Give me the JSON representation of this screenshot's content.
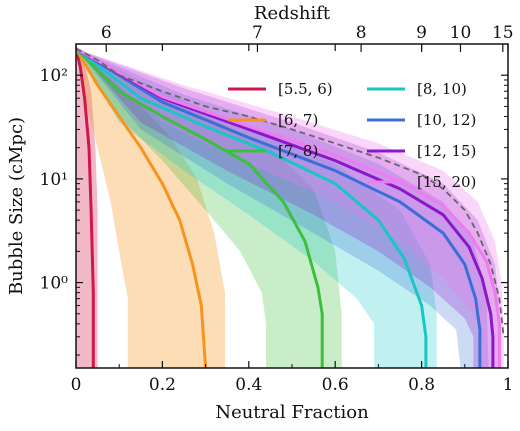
{
  "chart_data": {
    "type": "line",
    "xlabel": "Neutral Fraction",
    "ylabel": "Bubble Size (cMpc)",
    "top_axis_label": "Redshift",
    "xlim": [
      0,
      1
    ],
    "ylim": [
      0.15,
      200
    ],
    "yscale": "log",
    "x_ticks": [
      0,
      0.2,
      0.4,
      0.6,
      0.8,
      1
    ],
    "x_tick_labels": [
      "0",
      "0.2",
      "0.4",
      "0.6",
      "0.8",
      "1"
    ],
    "y_ticks": [
      1,
      10,
      100
    ],
    "y_tick_labels": [
      "10⁰",
      "10¹",
      "10²"
    ],
    "top_ticks": [
      {
        "label": "6",
        "x": 0.07
      },
      {
        "label": "7",
        "x": 0.42
      },
      {
        "label": "8",
        "x": 0.66
      },
      {
        "label": "9",
        "x": 0.8
      },
      {
        "label": "10",
        "x": 0.89
      },
      {
        "label": "15",
        "x": 0.988
      }
    ],
    "legend_position": "top-right",
    "grid": false,
    "reference_line": {
      "style": "dashed",
      "color": "#666666",
      "points": [
        [
          0,
          180
        ],
        [
          0.05,
          140
        ],
        [
          0.1,
          100
        ],
        [
          0.2,
          70
        ],
        [
          0.3,
          50
        ],
        [
          0.4,
          40
        ],
        [
          0.5,
          30
        ],
        [
          0.6,
          22
        ],
        [
          0.7,
          16
        ],
        [
          0.8,
          11
        ],
        [
          0.85,
          8
        ],
        [
          0.9,
          5
        ],
        [
          0.93,
          3
        ],
        [
          0.96,
          1.5
        ],
        [
          0.98,
          0.7
        ],
        [
          0.99,
          0.3
        ]
      ]
    },
    "series": [
      {
        "name": "[5.5, 6)",
        "color": "#d1174a",
        "band_opacity": 0.3,
        "points": [
          [
            0,
            180
          ],
          [
            0.01,
            120
          ],
          [
            0.02,
            60
          ],
          [
            0.03,
            20
          ],
          [
            0.035,
            5
          ],
          [
            0.04,
            0.8
          ],
          [
            0.04,
            0.15
          ]
        ],
        "band_lower": [
          [
            0,
            180
          ],
          [
            0.0,
            0.15
          ]
        ],
        "band_upper": [
          [
            0,
            180
          ],
          [
            0.02,
            130
          ],
          [
            0.035,
            70
          ],
          [
            0.045,
            20
          ],
          [
            0.05,
            5
          ],
          [
            0.05,
            0.15
          ]
        ]
      },
      {
        "name": "[6, 7)",
        "color": "#f7941d",
        "band_opacity": 0.32,
        "points": [
          [
            0,
            180
          ],
          [
            0.05,
            80
          ],
          [
            0.1,
            40
          ],
          [
            0.15,
            20
          ],
          [
            0.2,
            9
          ],
          [
            0.24,
            4
          ],
          [
            0.27,
            1.5
          ],
          [
            0.29,
            0.6
          ],
          [
            0.3,
            0.15
          ]
        ],
        "band_lower": [
          [
            0,
            180
          ],
          [
            0.02,
            60
          ],
          [
            0.05,
            20
          ],
          [
            0.08,
            6
          ],
          [
            0.1,
            2
          ],
          [
            0.12,
            0.7
          ],
          [
            0.12,
            0.15
          ]
        ],
        "band_upper": [
          [
            0,
            180
          ],
          [
            0.08,
            90
          ],
          [
            0.15,
            50
          ],
          [
            0.22,
            25
          ],
          [
            0.28,
            10
          ],
          [
            0.32,
            3
          ],
          [
            0.345,
            0.8
          ],
          [
            0.345,
            0.15
          ]
        ]
      },
      {
        "name": "[7, 8)",
        "color": "#3cbf3c",
        "band_opacity": 0.28,
        "points": [
          [
            0,
            180
          ],
          [
            0.1,
            70
          ],
          [
            0.2,
            40
          ],
          [
            0.3,
            24
          ],
          [
            0.4,
            14
          ],
          [
            0.48,
            6
          ],
          [
            0.53,
            2.5
          ],
          [
            0.56,
            0.9
          ],
          [
            0.57,
            0.5
          ],
          [
            0.57,
            0.15
          ]
        ],
        "band_lower": [
          [
            0,
            180
          ],
          [
            0.1,
            40
          ],
          [
            0.2,
            15
          ],
          [
            0.3,
            5
          ],
          [
            0.38,
            2
          ],
          [
            0.43,
            0.8
          ],
          [
            0.44,
            0.4
          ],
          [
            0.44,
            0.15
          ]
        ],
        "band_upper": [
          [
            0,
            180
          ],
          [
            0.15,
            80
          ],
          [
            0.3,
            40
          ],
          [
            0.45,
            20
          ],
          [
            0.55,
            8
          ],
          [
            0.6,
            2
          ],
          [
            0.615,
            0.5
          ],
          [
            0.615,
            0.15
          ]
        ]
      },
      {
        "name": "[8, 10)",
        "color": "#19c6c6",
        "band_opacity": 0.27,
        "points": [
          [
            0,
            180
          ],
          [
            0.15,
            60
          ],
          [
            0.3,
            32
          ],
          [
            0.45,
            18
          ],
          [
            0.6,
            9
          ],
          [
            0.7,
            4
          ],
          [
            0.76,
            1.7
          ],
          [
            0.8,
            0.6
          ],
          [
            0.81,
            0.3
          ],
          [
            0.81,
            0.15
          ]
        ],
        "band_lower": [
          [
            0,
            180
          ],
          [
            0.1,
            35
          ],
          [
            0.25,
            12
          ],
          [
            0.4,
            4.5
          ],
          [
            0.55,
            1.6
          ],
          [
            0.65,
            0.7
          ],
          [
            0.69,
            0.4
          ],
          [
            0.69,
            0.15
          ]
        ],
        "band_upper": [
          [
            0,
            180
          ],
          [
            0.2,
            70
          ],
          [
            0.4,
            30
          ],
          [
            0.6,
            14
          ],
          [
            0.75,
            5
          ],
          [
            0.82,
            1.5
          ],
          [
            0.835,
            0.5
          ],
          [
            0.835,
            0.15
          ]
        ]
      },
      {
        "name": "[10, 12)",
        "color": "#3a6fd8",
        "band_opacity": 0.26,
        "points": [
          [
            0,
            180
          ],
          [
            0.2,
            55
          ],
          [
            0.4,
            25
          ],
          [
            0.6,
            12
          ],
          [
            0.75,
            6
          ],
          [
            0.85,
            3
          ],
          [
            0.9,
            1.5
          ],
          [
            0.925,
            0.7
          ],
          [
            0.935,
            0.35
          ],
          [
            0.935,
            0.15
          ]
        ],
        "band_lower": [
          [
            0,
            180
          ],
          [
            0.15,
            30
          ],
          [
            0.35,
            9
          ],
          [
            0.55,
            3
          ],
          [
            0.7,
            1.3
          ],
          [
            0.82,
            0.6
          ],
          [
            0.88,
            0.35
          ],
          [
            0.89,
            0.15
          ]
        ],
        "band_upper": [
          [
            0,
            180
          ],
          [
            0.25,
            65
          ],
          [
            0.5,
            30
          ],
          [
            0.7,
            14
          ],
          [
            0.85,
            6
          ],
          [
            0.92,
            2.5
          ],
          [
            0.95,
            0.8
          ],
          [
            0.955,
            0.15
          ]
        ]
      },
      {
        "name": "[12, 15)",
        "color": "#8a17c9",
        "band_opacity": 0.26,
        "points": [
          [
            0,
            180
          ],
          [
            0.2,
            60
          ],
          [
            0.4,
            30
          ],
          [
            0.6,
            15
          ],
          [
            0.75,
            8
          ],
          [
            0.85,
            4.5
          ],
          [
            0.91,
            2.2
          ],
          [
            0.94,
            1.1
          ],
          [
            0.96,
            0.5
          ],
          [
            0.965,
            0.3
          ],
          [
            0.965,
            0.15
          ]
        ],
        "band_lower": [
          [
            0,
            180
          ],
          [
            0.15,
            35
          ],
          [
            0.35,
            12
          ],
          [
            0.55,
            4.5
          ],
          [
            0.7,
            2
          ],
          [
            0.82,
            0.9
          ],
          [
            0.9,
            0.45
          ],
          [
            0.92,
            0.3
          ],
          [
            0.92,
            0.15
          ]
        ],
        "band_upper": [
          [
            0,
            180
          ],
          [
            0.25,
            75
          ],
          [
            0.5,
            35
          ],
          [
            0.7,
            18
          ],
          [
            0.85,
            9
          ],
          [
            0.93,
            4
          ],
          [
            0.97,
            1.5
          ],
          [
            0.98,
            0.6
          ],
          [
            0.98,
            0.15
          ]
        ]
      },
      {
        "name": "[15, 20)",
        "color": "#f07bf0",
        "band_opacity": 0.3,
        "points": [
          [
            0,
            180
          ],
          [
            0.2,
            62
          ],
          [
            0.4,
            32
          ],
          [
            0.6,
            17
          ],
          [
            0.75,
            9.5
          ],
          [
            0.85,
            5.5
          ],
          [
            0.91,
            3
          ],
          [
            0.95,
            1.6
          ],
          [
            0.97,
            0.8
          ],
          [
            0.98,
            0.4
          ],
          [
            0.98,
            0.15
          ]
        ],
        "band_lower": [
          [
            0,
            180
          ],
          [
            0.2,
            35
          ],
          [
            0.4,
            14
          ],
          [
            0.6,
            6
          ],
          [
            0.75,
            2.5
          ],
          [
            0.85,
            1.1
          ],
          [
            0.92,
            0.5
          ],
          [
            0.94,
            0.3
          ],
          [
            0.94,
            0.15
          ]
        ],
        "band_upper": [
          [
            0,
            180
          ],
          [
            0.25,
            80
          ],
          [
            0.5,
            40
          ],
          [
            0.7,
            22
          ],
          [
            0.85,
            12
          ],
          [
            0.93,
            6
          ],
          [
            0.97,
            2.5
          ],
          [
            0.985,
            1
          ],
          [
            0.99,
            0.4
          ],
          [
            0.99,
            0.15
          ]
        ]
      }
    ]
  }
}
